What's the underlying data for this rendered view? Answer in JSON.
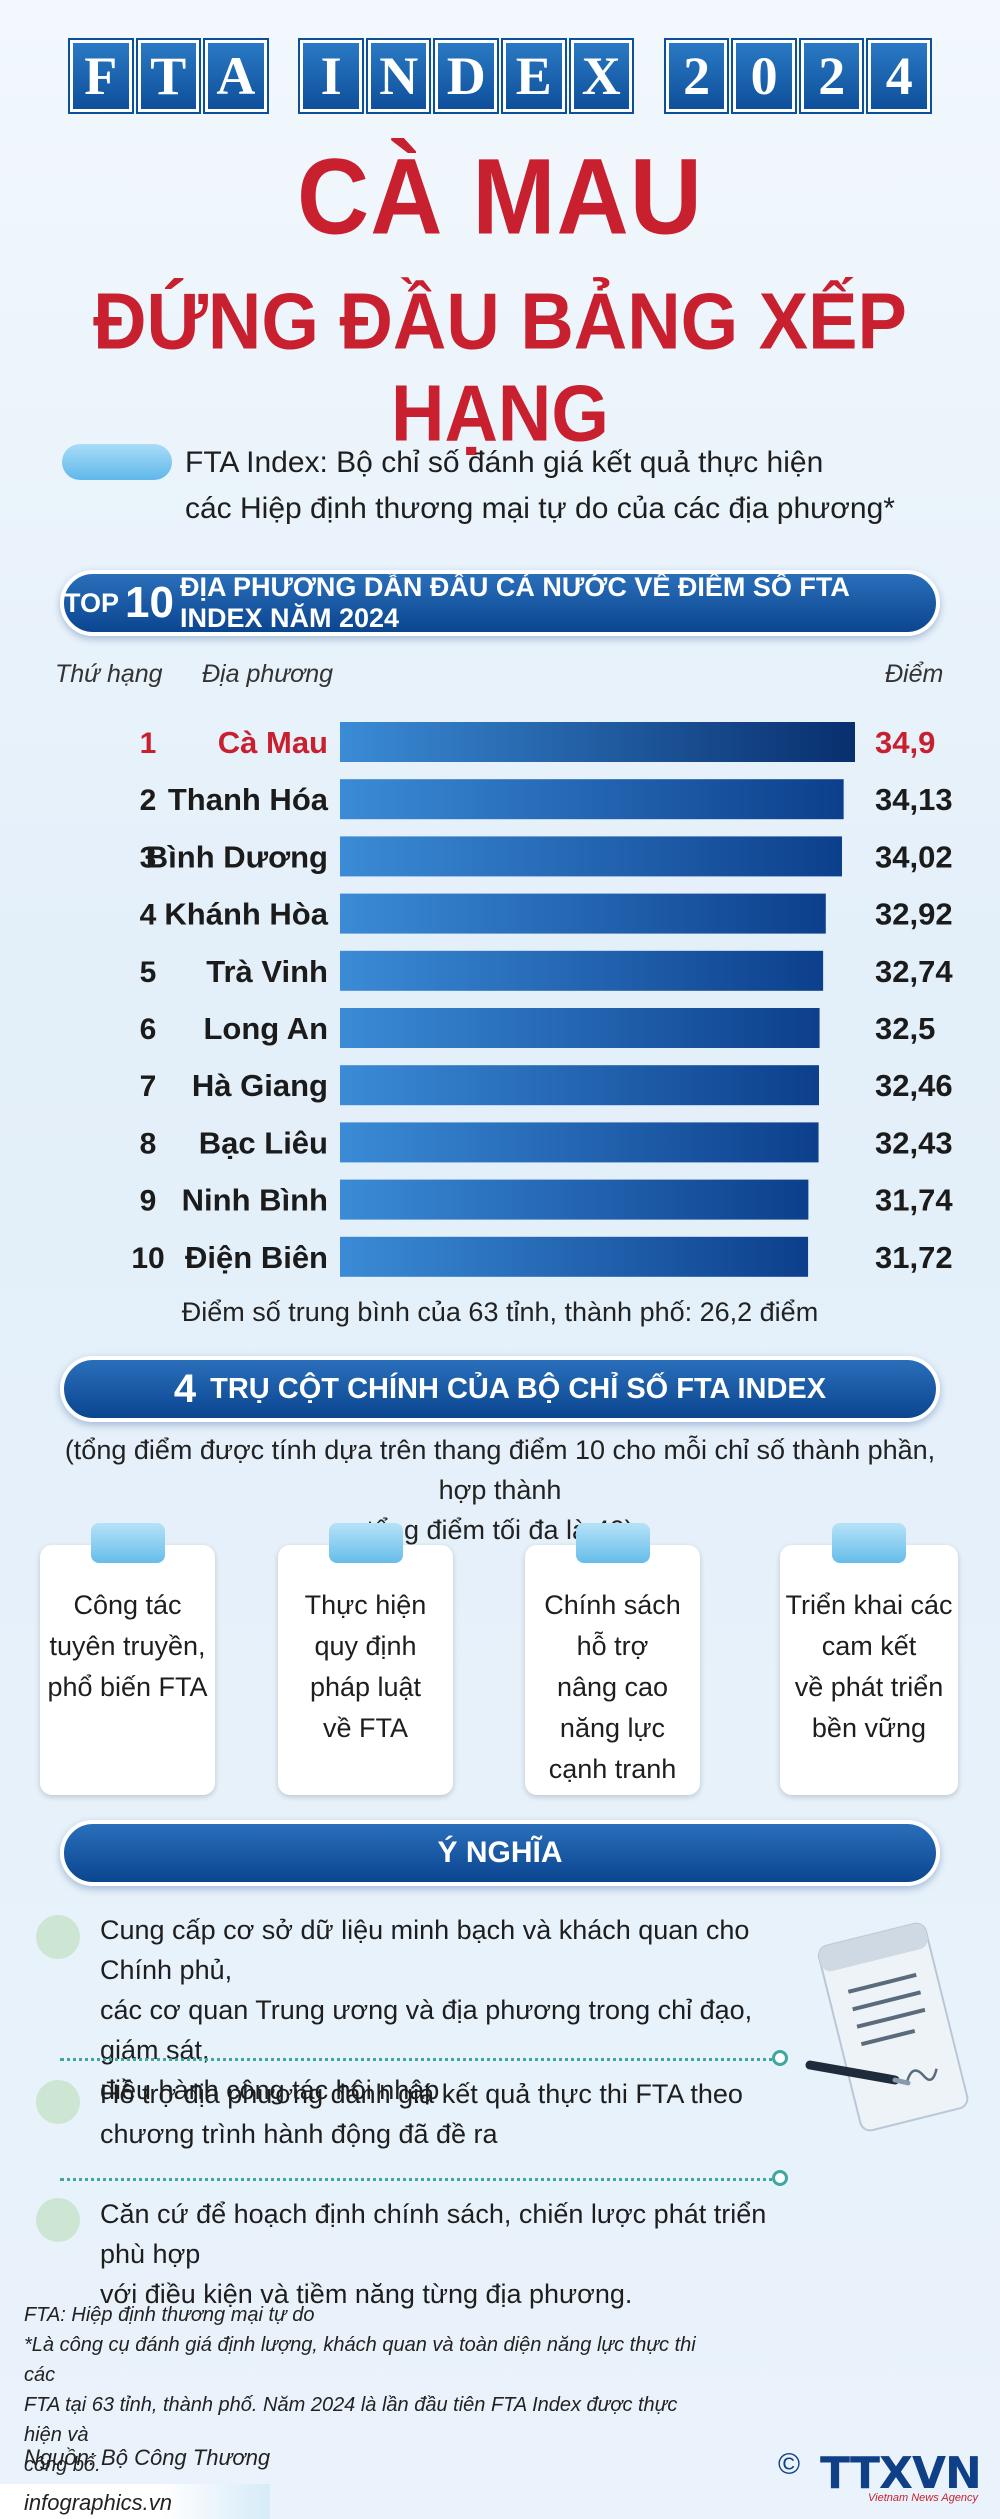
{
  "header": {
    "title": "FTA INDEX 2024",
    "headline_line1": "CÀ MAU",
    "headline_line2": "ĐỨNG ĐẦU BẢNG XẾP HẠNG"
  },
  "definition": {
    "line1": "FTA Index: Bộ chỉ số đánh giá kết quả thực hiện",
    "line2": "các Hiệp định thương mại tự do của các địa phương*"
  },
  "top10_banner": {
    "prefix": "TOP",
    "number": "10",
    "suffix": "ĐỊA PHƯƠNG DẪN ĐẦU CẢ NƯỚC VỀ ĐIỂM SỐ FTA INDEX NĂM 2024"
  },
  "columns": {
    "rank": "Thứ hạng",
    "locality": "Địa phương",
    "score": "Điểm"
  },
  "chart_data": {
    "type": "bar",
    "orientation": "horizontal",
    "categories": [
      "Cà Mau",
      "Thanh Hóa",
      "Bình Dương",
      "Khánh Hòa",
      "Trà Vinh",
      "Long An",
      "Hà Giang",
      "Bạc Liêu",
      "Ninh Bình",
      "Điện Biên"
    ],
    "ranks": [
      "1",
      "2",
      "3",
      "4",
      "5",
      "6",
      "7",
      "8",
      "9",
      "10"
    ],
    "values": [
      34.9,
      34.13,
      34.02,
      32.92,
      32.74,
      32.5,
      32.46,
      32.43,
      31.74,
      31.72
    ],
    "value_labels": [
      "34,9",
      "34,13",
      "34,02",
      "32,92",
      "32,74",
      "32,5",
      "32,46",
      "32,43",
      "31,74",
      "31,72"
    ],
    "highlight_index": 0,
    "xlim": [
      0,
      34.9
    ],
    "colors": {
      "bar_start": "#3b8bd6",
      "bar_end": "#0c3f8c",
      "highlight_bar_end": "#082f6e",
      "highlight_text": "#c8202f"
    }
  },
  "average_note": "Điểm số trung bình của 63 tỉnh, thành phố: 26,2 điểm",
  "pillars_banner": {
    "number": "4",
    "text": "TRỤ CỘT CHÍNH CỦA BỘ CHỈ SỐ FTA INDEX"
  },
  "pillars_note": {
    "line1": "(tổng điểm được tính dựa trên thang điểm 10 cho mỗi chỉ số thành phần, hợp thành",
    "line2": "tổng điểm tối đa là 40)"
  },
  "pillars": [
    {
      "lines": [
        "Công tác",
        "tuyên truyền,",
        "phổ biến FTA"
      ]
    },
    {
      "lines": [
        "Thực hiện",
        "quy định",
        "pháp luật",
        "về FTA"
      ]
    },
    {
      "lines": [
        "Chính sách",
        "hỗ trợ",
        "nâng cao",
        "năng lực",
        "cạnh tranh"
      ]
    },
    {
      "lines": [
        "Triển khai các",
        "cam kết",
        "về phát triển",
        "bền vững"
      ]
    }
  ],
  "meaning_banner": "Ý NGHĨA",
  "meanings": [
    {
      "lines": [
        "Cung cấp cơ sở dữ liệu minh bạch và khách quan cho Chính phủ,",
        "các cơ quan Trung ương và địa phương trong chỉ đạo, giám sát,",
        "điều hành công tác hội nhập"
      ]
    },
    {
      "lines": [
        "Hỗ trợ địa phương đánh giá kết quả thực thi FTA theo",
        "chương trình hành động đã đề ra"
      ]
    },
    {
      "lines": [
        "Căn cứ để hoạch định chính sách, chiến lược phát triển phù hợp",
        "với điều kiện và tiềm năng từng địa phương."
      ]
    }
  ],
  "footnote": {
    "line1": "FTA: Hiệp định thương mại tự do",
    "line2": "*Là công cụ đánh giá định lượng, khách quan và toàn diện năng lực thực thi các",
    "line3": "FTA tại 63 tỉnh, thành phố. Năm 2024 là lần đầu tiên FTA Index được thực hiện và",
    "line4": "công bố."
  },
  "source": "Nguồn: Bộ Công Thương",
  "site": "infographics.vn",
  "copyright_symbol": "©",
  "logo_text": "TTXVN",
  "logo_subtitle": "Vietnam News Agency"
}
